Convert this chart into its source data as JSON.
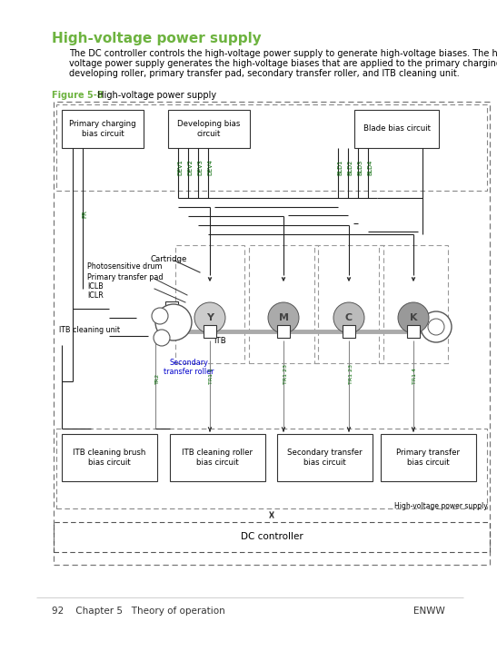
{
  "page_bg": "#ffffff",
  "title": "High-voltage power supply",
  "title_color": "#6db33f",
  "title_fontsize": 11,
  "body_lines": [
    "The DC controller controls the high-voltage power supply to generate high-voltage biases. The high-",
    "voltage power supply generates the high-voltage biases that are applied to the primary charging roller,",
    "developing roller, primary transfer pad, secondary transfer roller, and ITB cleaning unit."
  ],
  "body_fontsize": 7.0,
  "figure_label": "Figure 5-8",
  "figure_label_color": "#6db33f",
  "figure_title": "  High-voltage power supply",
  "footer_left": "92    Chapter 5   Theory of operation",
  "footer_right": "ENWW",
  "footer_fontsize": 7.5,
  "green_label": "#5b8c00",
  "blue_label": "#0000cc",
  "dark_green": "#006600"
}
